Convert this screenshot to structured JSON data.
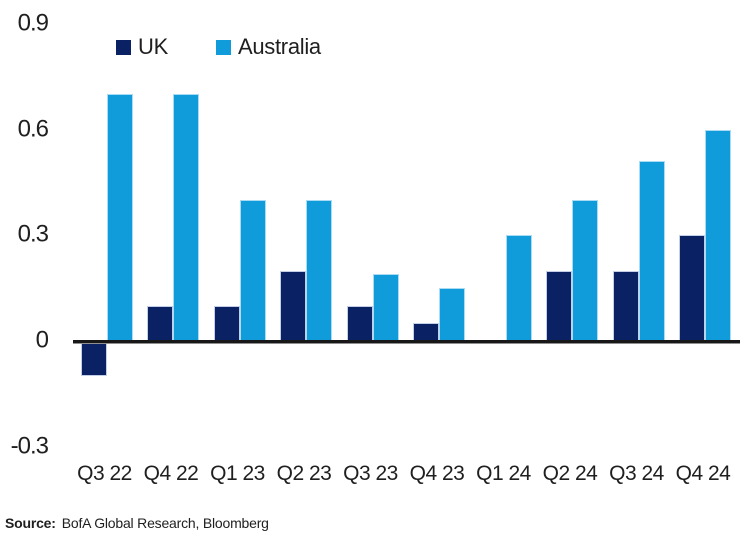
{
  "legend": {
    "items": [
      {
        "label": "UK",
        "color": "#0a2163"
      },
      {
        "label": "Australia",
        "color": "#109bda"
      }
    ]
  },
  "y_axis": {
    "tick_labels": [
      "0.9",
      "0.6",
      "0.3",
      "0",
      "-0.3"
    ]
  },
  "x_axis": {
    "labels": [
      "Q3 22",
      "Q4 22",
      "Q1 23",
      "Q2 23",
      "Q3 23",
      "Q4 23",
      "Q1 24",
      "Q2 24",
      "Q3 24",
      "Q4 24"
    ]
  },
  "source": {
    "label": "Source:",
    "text": "BofA Global Research, Bloomberg"
  },
  "chart_data": {
    "type": "bar",
    "title": "",
    "xlabel": "",
    "ylabel": "",
    "categories": [
      "Q3 22",
      "Q4 22",
      "Q1 23",
      "Q2 23",
      "Q3 23",
      "Q4 23",
      "Q1 24",
      "Q2 24",
      "Q3 24",
      "Q4 24"
    ],
    "series": [
      {
        "name": "UK",
        "color": "#0a2163",
        "values": [
          -0.1,
          0.1,
          0.1,
          0.2,
          0.1,
          0.05,
          0,
          0.2,
          0.2,
          0.3
        ]
      },
      {
        "name": "Australia",
        "color": "#109bda",
        "values": [
          0.7,
          0.7,
          0.4,
          0.4,
          0.19,
          0.15,
          0.3,
          0.4,
          0.51,
          0.6
        ]
      }
    ],
    "ylim": [
      -0.3,
      0.9
    ],
    "yticks": [
      0.9,
      0.6,
      0.3,
      0,
      -0.3
    ],
    "grid": false,
    "legend_position": "top",
    "source": "BofA Global Research, Bloomberg"
  }
}
